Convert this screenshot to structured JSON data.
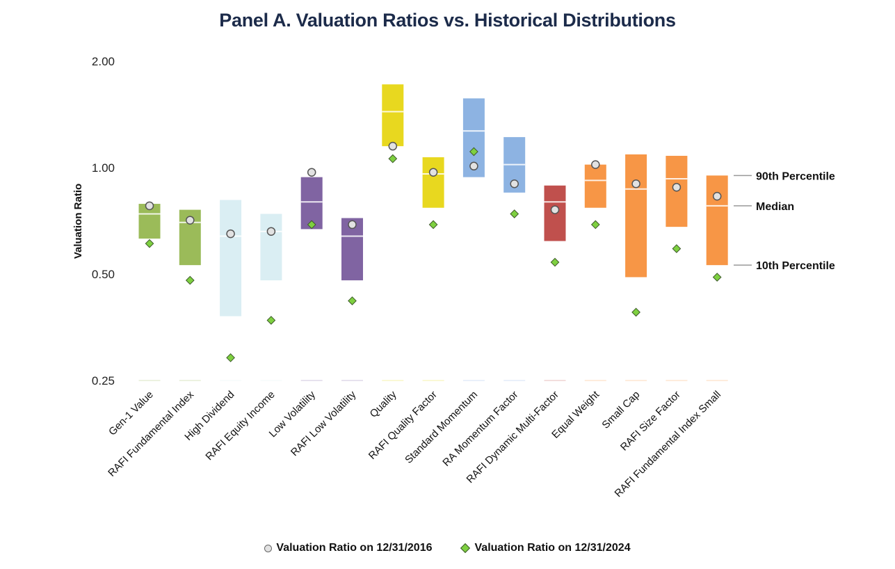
{
  "chart_data": {
    "type": "range-box",
    "title": "Panel A. Valuation Ratios vs. Historical Distributions",
    "ylabel": "Valuation Ratio",
    "xlabel": "",
    "yscale": "log2",
    "ylim": [
      0.25,
      2.0
    ],
    "yticks": [
      {
        "value": 2.0,
        "label": "2.00"
      },
      {
        "value": 1.0,
        "label": "1.00"
      },
      {
        "value": 0.5,
        "label": "0.50"
      },
      {
        "value": 0.25,
        "label": "0.25"
      }
    ],
    "grid": false,
    "legend_position": "bottom",
    "legend": [
      {
        "name": "Valuation Ratio on 12/31/2016",
        "marker": "circle"
      },
      {
        "name": "Valuation Ratio on 12/31/2024",
        "marker": "diamond"
      }
    ],
    "annotations": [
      "90th Percentile",
      "Median",
      "10th Percentile"
    ],
    "annotation_target": "RAFI Fundamental Index Small",
    "categories": [
      "Gen-1 Value",
      "RAFI Fundamental Index",
      "High Dividend",
      "RAFI Equity Income",
      "Low Volatility",
      "RAFI Low Volatility",
      "Quality",
      "RAFI Quality Factor",
      "Standard Momentum",
      "RA Momentum Factor",
      "RAFI Dynamic Multi-Factor",
      "Equal Weight",
      "Small Cap",
      "RAFI Size Factor",
      "RAFI Fundamental Index Small"
    ],
    "series": [
      {
        "name": "90th Percentile",
        "values": [
          0.79,
          0.76,
          0.81,
          0.74,
          0.94,
          0.72,
          1.72,
          1.07,
          1.57,
          1.22,
          0.89,
          1.02,
          1.09,
          1.08,
          0.95
        ]
      },
      {
        "name": "Median",
        "values": [
          0.74,
          0.7,
          0.64,
          0.66,
          0.8,
          0.64,
          1.44,
          0.96,
          1.27,
          1.02,
          0.8,
          0.92,
          0.87,
          0.93,
          0.78
        ]
      },
      {
        "name": "10th Percentile",
        "values": [
          0.63,
          0.53,
          0.38,
          0.48,
          0.67,
          0.48,
          1.15,
          0.77,
          0.94,
          0.85,
          0.62,
          0.77,
          0.49,
          0.68,
          0.53
        ]
      },
      {
        "name": "Valuation Ratio on 12/31/2016",
        "values": [
          0.78,
          0.71,
          0.65,
          0.66,
          0.97,
          0.69,
          1.15,
          0.97,
          1.01,
          0.9,
          0.76,
          1.02,
          0.9,
          0.88,
          0.83
        ]
      },
      {
        "name": "Valuation Ratio on 12/31/2024",
        "values": [
          0.61,
          0.48,
          0.29,
          0.37,
          0.69,
          0.42,
          1.06,
          0.69,
          1.11,
          0.74,
          0.54,
          0.69,
          0.39,
          0.59,
          0.49
        ]
      }
    ],
    "colors": [
      "#9bbb59",
      "#9bbb59",
      "#daeef3",
      "#daeef3",
      "#8064a2",
      "#8064a2",
      "#e8d81f",
      "#e8d81f",
      "#8db3e2",
      "#8db3e2",
      "#c0504d",
      "#f79646",
      "#f79646",
      "#f79646",
      "#f79646"
    ]
  },
  "legend_labels": {
    "circle": "Valuation Ratio on 12/31/2016",
    "diamond": "Valuation Ratio on 12/31/2024"
  }
}
